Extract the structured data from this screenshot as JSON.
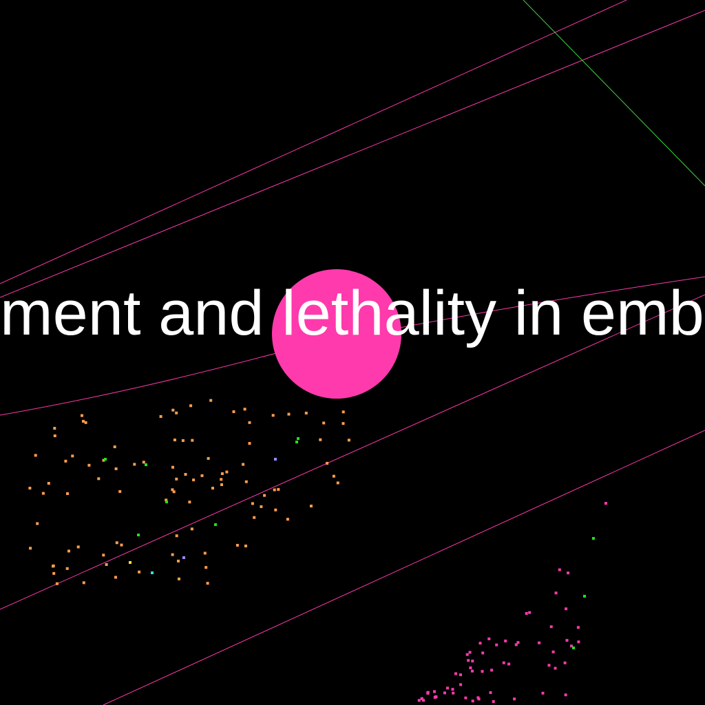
{
  "caption": {
    "text": "ment and lethality in embr"
  },
  "colors": {
    "background": "#000000",
    "node_highlight": "#ff3aad",
    "edge_pink": "#ff3aad",
    "edge_green": "#3fdc3f",
    "cluster_orange": "#ff9d4f",
    "cluster_pink": "#ff3aad",
    "accent_green": "#19e619",
    "accent_violet": "#9b8cff",
    "accent_cyan": "#35e0e0",
    "accent_yellow": "#f2e23a"
  },
  "nodes": {
    "highlight": {
      "name": "highlight-node",
      "color": "#ff3aad"
    }
  }
}
